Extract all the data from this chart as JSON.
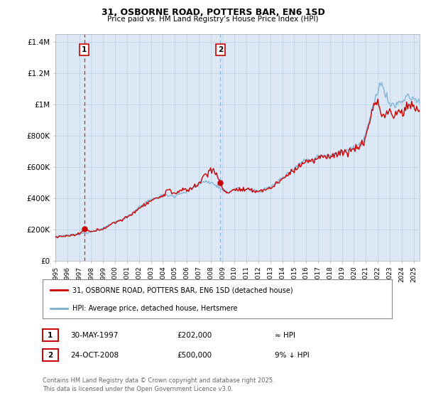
{
  "title": "31, OSBORNE ROAD, POTTERS BAR, EN6 1SD",
  "subtitle": "Price paid vs. HM Land Registry's House Price Index (HPI)",
  "ylabel_ticks": [
    "£0",
    "£200K",
    "£400K",
    "£600K",
    "£800K",
    "£1M",
    "£1.2M",
    "£1.4M"
  ],
  "ytick_values": [
    0,
    200000,
    400000,
    600000,
    800000,
    1000000,
    1200000,
    1400000
  ],
  "ylim": [
    0,
    1450000
  ],
  "xlim_start": 1995.0,
  "xlim_end": 2025.5,
  "sale1_date": 1997.41,
  "sale1_price": 202000,
  "sale1_label": "1",
  "sale2_date": 2008.81,
  "sale2_price": 500000,
  "sale2_label": "2",
  "price_color": "#cc0000",
  "hpi_color": "#7ab0d4",
  "vline1_color": "#cc0000",
  "vline2_color": "#7ab0d4",
  "legend_price_label": "31, OSBORNE ROAD, POTTERS BAR, EN6 1SD (detached house)",
  "legend_hpi_label": "HPI: Average price, detached house, Hertsmere",
  "annotation1_date": "30-MAY-1997",
  "annotation1_price": "£202,000",
  "annotation1_hpi": "≈ HPI",
  "annotation2_date": "24-OCT-2008",
  "annotation2_price": "£500,000",
  "annotation2_hpi": "9% ↓ HPI",
  "footer": "Contains HM Land Registry data © Crown copyright and database right 2025.\nThis data is licensed under the Open Government Licence v3.0.",
  "plot_bg_color": "#dce8f5",
  "fig_bg_color": "#ffffff",
  "grid_color": "#b8cfe0"
}
